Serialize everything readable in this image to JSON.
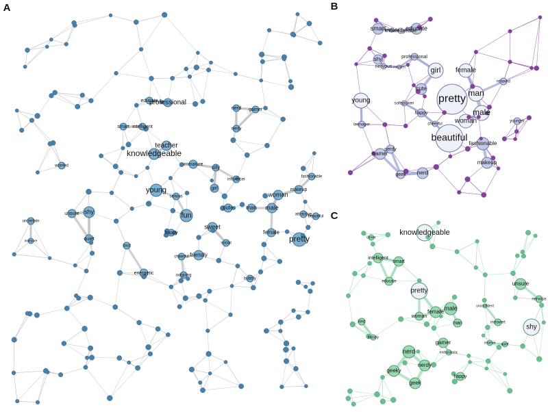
{
  "panels": [
    {
      "label": "A",
      "nodes": [
        "professional",
        "educate",
        "intelligent",
        "smart",
        "knowledgeable",
        "teacher",
        "immature",
        "young",
        "fun",
        "serious",
        "sweet",
        "girl",
        "cute",
        "man",
        "male",
        "woman",
        "makeup",
        "female",
        "pretty",
        "attractive",
        "beautiful",
        "fashionable",
        "friendly",
        "happy",
        "loud",
        "quiet",
        "shy",
        "unsure",
        "uncertain",
        "worried",
        "nerd",
        "gamer",
        "nerdy",
        "silly",
        "energetic",
        "outgoing",
        "cheerful",
        "social",
        "insecure",
        "bubbly",
        "influencer"
      ]
    },
    {
      "label": "B",
      "nodes": [
        "smart",
        "educate",
        "knowledgeable",
        "intelligent",
        "shy",
        "nervous",
        "professional",
        "girl",
        "female",
        "pretty",
        "man",
        "male",
        "woman",
        "beautiful",
        "fashionable",
        "makeup",
        "young",
        "cute",
        "happy",
        "gamer",
        "nerdy",
        "geek",
        "nerd",
        "teenager",
        "introvert",
        "softspoken",
        "cheerful",
        "relaxed",
        "younger"
      ]
    },
    {
      "label": "C",
      "nodes": [
        "knowledgeable",
        "intelligent",
        "smart",
        "clever",
        "educate",
        "pretty",
        "male",
        "female",
        "woman",
        "man",
        "unsure",
        "nervous",
        "shy",
        "introvert",
        "reserve",
        "quiet",
        "gamer",
        "nerd",
        "nerdy",
        "geeky",
        "geek",
        "kind",
        "friendly",
        "happy",
        "enthusiastic",
        "unconfident"
      ]
    }
  ]
}
